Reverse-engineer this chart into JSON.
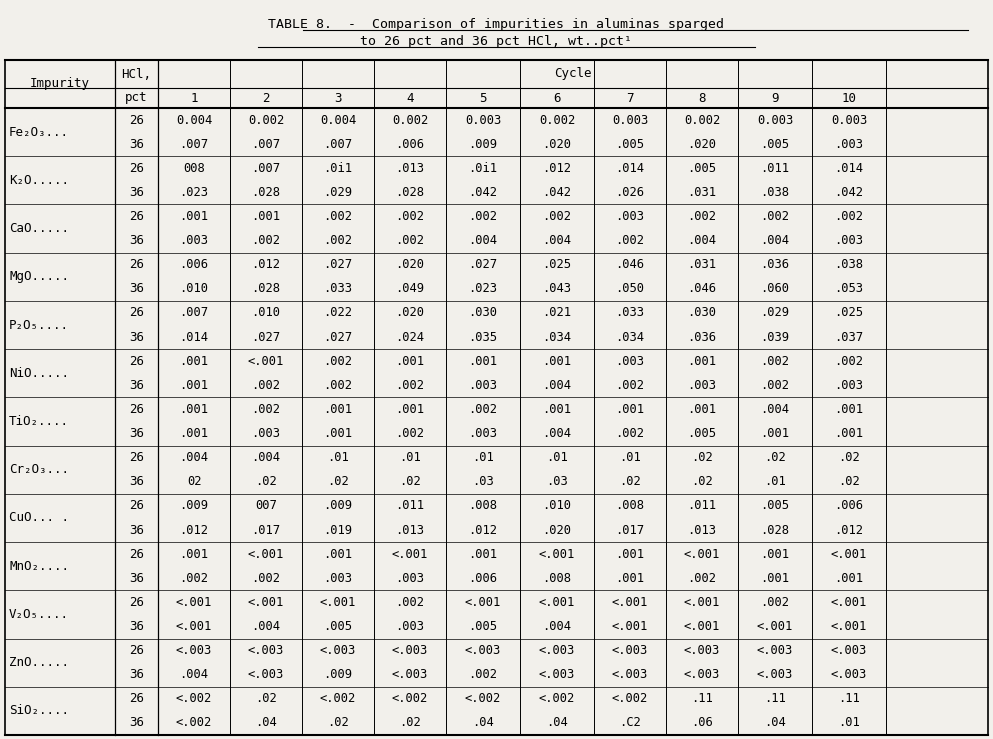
{
  "title_line1": "TABLE 8.  -  Comparison of impurities in aluminas sparged",
  "title_line2": "to 26 pct and 36 pct HCl, wt..pct¹",
  "rows": [
    [
      "Fe₂O₃...",
      "26",
      "0.004",
      "0.002",
      "0.004",
      "0.002",
      "0.003",
      "0.002",
      "0.003",
      "0.002",
      "0.003",
      "0.003"
    ],
    [
      "",
      "36",
      ".007",
      ".007",
      ".007",
      ".006",
      ".009",
      ".020",
      ".005",
      ".020",
      ".005",
      ".003"
    ],
    [
      "K₂O.....",
      "26",
      "008",
      ".007",
      ".0i1",
      ".013",
      ".0i1",
      ".012",
      ".014",
      ".005",
      ".011",
      ".014"
    ],
    [
      "",
      "36",
      ".023",
      ".028",
      ".029",
      ".028",
      ".042",
      ".042",
      ".026",
      ".031",
      ".038",
      ".042"
    ],
    [
      "CaO.....",
      "26",
      ".001",
      ".001",
      ".002",
      ".002",
      ".002",
      ".002",
      ".003",
      ".002",
      ".002",
      ".002"
    ],
    [
      "",
      "36",
      ".003",
      ".002",
      ".002",
      ".002",
      ".004",
      ".004",
      ".002",
      ".004",
      ".004",
      ".003"
    ],
    [
      "MgO.....",
      "26",
      ".006",
      ".012",
      ".027",
      ".020",
      ".027",
      ".025",
      ".046",
      ".031",
      ".036",
      ".038"
    ],
    [
      "",
      "36",
      ".010",
      ".028",
      ".033",
      ".049",
      ".023",
      ".043",
      ".050",
      ".046",
      ".060",
      ".053"
    ],
    [
      "P₂O₅....",
      "26",
      ".007",
      ".010",
      ".022",
      ".020",
      ".030",
      ".021",
      ".033",
      ".030",
      ".029",
      ".025"
    ],
    [
      "",
      "36",
      ".014",
      ".027",
      ".027",
      ".024",
      ".035",
      ".034",
      ".034",
      ".036",
      ".039",
      ".037"
    ],
    [
      "NiO.....",
      "26",
      ".001",
      "<.001",
      ".002",
      ".001",
      ".001",
      ".001",
      ".003",
      ".001",
      ".002",
      ".002"
    ],
    [
      "",
      "36",
      ".001",
      ".002",
      ".002",
      ".002",
      ".003",
      ".004",
      ".002",
      ".003",
      ".002",
      ".003"
    ],
    [
      "TiO₂....",
      "26",
      ".001",
      ".002",
      ".001",
      ".001",
      ".002",
      ".001",
      ".001",
      ".001",
      ".004",
      ".001"
    ],
    [
      "",
      "36",
      ".001",
      ".003",
      ".001",
      ".002",
      ".003",
      ".004",
      ".002",
      ".005",
      ".001",
      ".001"
    ],
    [
      "Cr₂O₃...",
      "26",
      ".004",
      ".004",
      ".01",
      ".01",
      ".01",
      ".01",
      ".01",
      ".02",
      ".02",
      ".02"
    ],
    [
      "",
      "36",
      "02",
      ".02",
      ".02",
      ".02",
      ".03",
      ".03",
      ".02",
      ".02",
      ".01",
      ".02"
    ],
    [
      "CuO... .",
      "26",
      ".009",
      "007",
      ".009",
      ".011",
      ".008",
      ".010",
      ".008",
      ".011",
      ".005",
      ".006"
    ],
    [
      "",
      "36",
      ".012",
      ".017",
      ".019",
      ".013",
      ".012",
      ".020",
      ".017",
      ".013",
      ".028",
      ".012"
    ],
    [
      "MnO₂....",
      "26",
      ".001",
      "<.001",
      ".001",
      "<.001",
      ".001",
      "<.001",
      ".001",
      "<.001",
      ".001",
      "<.001"
    ],
    [
      "",
      "36",
      ".002",
      ".002",
      ".003",
      ".003",
      ".006",
      ".008",
      ".001",
      ".002",
      ".001",
      ".001"
    ],
    [
      "V₂O₅....",
      "26",
      "<.001",
      "<.001",
      "<.001",
      ".002",
      "<.001",
      "<.001",
      "<.001",
      "<.001",
      ".002",
      "<.001"
    ],
    [
      "",
      "36",
      "<.001",
      ".004",
      ".005",
      ".003",
      ".005",
      ".004",
      "<.001",
      "<.001",
      "<.001",
      "<.001"
    ],
    [
      "ZnO.....",
      "26",
      "<.003",
      "<.003",
      "<.003",
      "<.003",
      "<.003",
      "<.003",
      "<.003",
      "<.003",
      "<.003",
      "<.003"
    ],
    [
      "",
      "36",
      ".004",
      "<.003",
      ".009",
      "<.003",
      ".002",
      "<.003",
      "<.003",
      "<.003",
      "<.003",
      "<.003"
    ],
    [
      "SiO₂....",
      "26",
      "<.002",
      ".02",
      "<.002",
      "<.002",
      "<.002",
      "<.002",
      "<.002",
      ".11",
      ".11",
      ".11"
    ],
    [
      "",
      "36",
      "<.002",
      ".04",
      ".02",
      ".02",
      ".04",
      ".04",
      ".C2",
      ".06",
      ".04",
      ".01"
    ]
  ],
  "bg_color": "#f2f0eb",
  "font_size": 9.0,
  "title_font_size": 9.5
}
